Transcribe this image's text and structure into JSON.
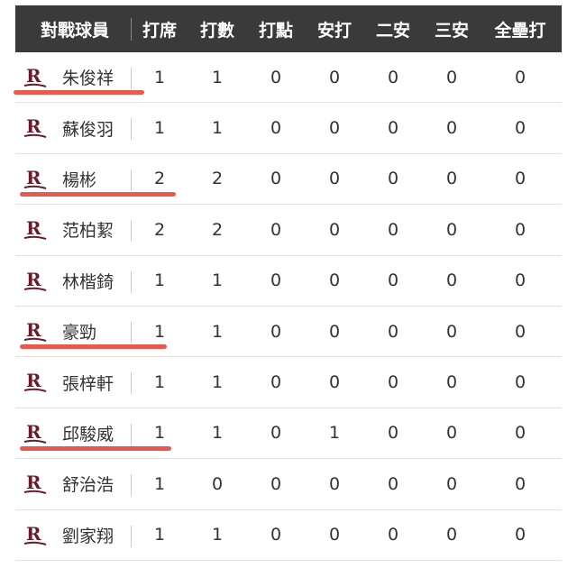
{
  "header": [
    "對戰球員",
    "打席",
    "打數",
    "打點",
    "安打",
    "二安",
    "三安",
    "全壘打"
  ],
  "team_logo": "R",
  "colors": {
    "header_bg": "#3a3a3a",
    "logo": "#6b1a2a",
    "underline": "#e8473a"
  },
  "rows": [
    {
      "name": "朱俊祥",
      "stats": [
        "1",
        "1",
        "0",
        "0",
        "0",
        "0",
        "0"
      ],
      "underlined": true
    },
    {
      "name": "蘇俊羽",
      "stats": [
        "1",
        "1",
        "0",
        "0",
        "0",
        "0",
        "0"
      ],
      "underlined": false
    },
    {
      "name": "楊彬",
      "stats": [
        "2",
        "2",
        "0",
        "0",
        "0",
        "0",
        "0"
      ],
      "underlined": true
    },
    {
      "name": "范柏絜",
      "stats": [
        "2",
        "2",
        "0",
        "0",
        "0",
        "0",
        "0"
      ],
      "underlined": false
    },
    {
      "name": "林楷錡",
      "stats": [
        "1",
        "1",
        "0",
        "0",
        "0",
        "0",
        "0"
      ],
      "underlined": false
    },
    {
      "name": "豪勁",
      "stats": [
        "1",
        "1",
        "0",
        "0",
        "0",
        "0",
        "0"
      ],
      "underlined": true
    },
    {
      "name": "張梓軒",
      "stats": [
        "1",
        "1",
        "0",
        "0",
        "0",
        "0",
        "0"
      ],
      "underlined": false
    },
    {
      "name": "邱駿威",
      "stats": [
        "1",
        "1",
        "0",
        "1",
        "0",
        "0",
        "0"
      ],
      "underlined": true
    },
    {
      "name": "舒治浩",
      "stats": [
        "1",
        "0",
        "0",
        "0",
        "0",
        "0",
        "0"
      ],
      "underlined": false
    },
    {
      "name": "劉家翔",
      "stats": [
        "1",
        "1",
        "0",
        "0",
        "0",
        "0",
        "0"
      ],
      "underlined": false
    }
  ]
}
